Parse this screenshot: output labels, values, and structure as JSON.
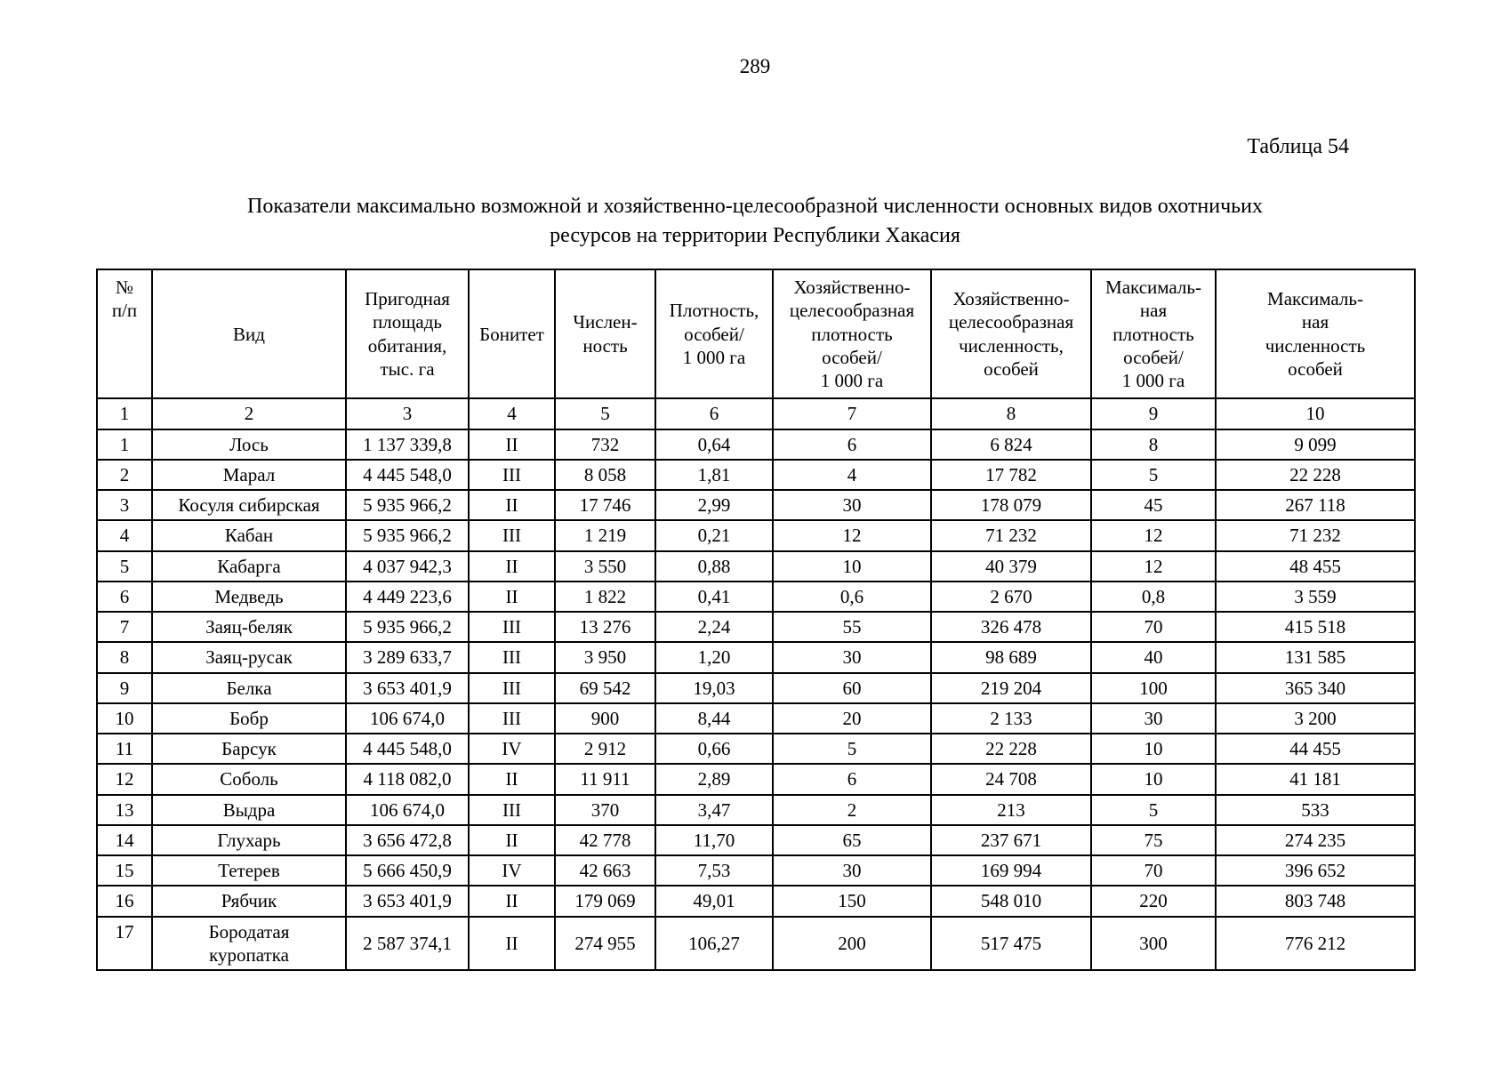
{
  "page": {
    "number": "289",
    "table_caption": "Таблица 54",
    "title": "Показатели максимально возможной и хозяйственно-целесообразной численности основных видов охотничьих\nресурсов на территории Республики Хакасия"
  },
  "table": {
    "headers": [
      "№\nп/п",
      "Вид",
      "Пригодная\nплощадь\nобитания,\nтыс. га",
      "Бонитет",
      "Числен-\nность",
      "Плотность,\nособей/\n1 000 га",
      "Хозяйственно-\nцелесообразная\nплотность\nособей/\n1 000 га",
      "Хозяйственно-\nцелесообразная\nчисленность,\nособей",
      "Максималь-\nная\nплотность\nособей/\n1 000 га",
      "Максималь-\nная\nчисленность\nособей"
    ],
    "column_numbers": [
      "1",
      "2",
      "3",
      "4",
      "5",
      "6",
      "7",
      "8",
      "9",
      "10"
    ],
    "rows": [
      [
        "1",
        "Лось",
        "1 137 339,8",
        "II",
        "732",
        "0,64",
        "6",
        "6 824",
        "8",
        "9 099"
      ],
      [
        "2",
        "Марал",
        "4 445 548,0",
        "III",
        "8 058",
        "1,81",
        "4",
        "17 782",
        "5",
        "22 228"
      ],
      [
        "3",
        "Косуля сибирская",
        "5 935 966,2",
        "II",
        "17 746",
        "2,99",
        "30",
        "178 079",
        "45",
        "267 118"
      ],
      [
        "4",
        "Кабан",
        "5 935 966,2",
        "III",
        "1 219",
        "0,21",
        "12",
        "71 232",
        "12",
        "71 232"
      ],
      [
        "5",
        "Кабарга",
        "4 037 942,3",
        "II",
        "3 550",
        "0,88",
        "10",
        "40 379",
        "12",
        "48 455"
      ],
      [
        "6",
        "Медведь",
        "4 449 223,6",
        "II",
        "1 822",
        "0,41",
        "0,6",
        "2 670",
        "0,8",
        "3 559"
      ],
      [
        "7",
        "Заяц-беляк",
        "5 935 966,2",
        "III",
        "13 276",
        "2,24",
        "55",
        "326 478",
        "70",
        "415 518"
      ],
      [
        "8",
        "Заяц-русак",
        "3 289 633,7",
        "III",
        "3 950",
        "1,20",
        "30",
        "98 689",
        "40",
        "131 585"
      ],
      [
        "9",
        "Белка",
        "3 653 401,9",
        "III",
        "69 542",
        "19,03",
        "60",
        "219 204",
        "100",
        "365 340"
      ],
      [
        "10",
        "Бобр",
        "106 674,0",
        "III",
        "900",
        "8,44",
        "20",
        "2 133",
        "30",
        "3 200"
      ],
      [
        "11",
        "Барсук",
        "4 445 548,0",
        "IV",
        "2 912",
        "0,66",
        "5",
        "22 228",
        "10",
        "44 455"
      ],
      [
        "12",
        "Соболь",
        "4 118 082,0",
        "II",
        "11 911",
        "2,89",
        "6",
        "24 708",
        "10",
        "41 181"
      ],
      [
        "13",
        "Выдра",
        "106 674,0",
        "III",
        "370",
        "3,47",
        "2",
        "213",
        "5",
        "533"
      ],
      [
        "14",
        "Глухарь",
        "3 656 472,8",
        "II",
        "42 778",
        "11,70",
        "65",
        "237 671",
        "75",
        "274 235"
      ],
      [
        "15",
        "Тетерев",
        "5 666 450,9",
        "IV",
        "42 663",
        "7,53",
        "30",
        "169 994",
        "70",
        "396 652"
      ],
      [
        "16",
        "Рябчик",
        "3 653 401,9",
        "II",
        "179 069",
        "49,01",
        "150",
        "548 010",
        "220",
        "803 748"
      ],
      [
        "17",
        "Бородатая\nкуропатка",
        "2 587 374,1",
        "II",
        "274 955",
        "106,27",
        "200",
        "517 475",
        "300",
        "776 212"
      ]
    ]
  }
}
